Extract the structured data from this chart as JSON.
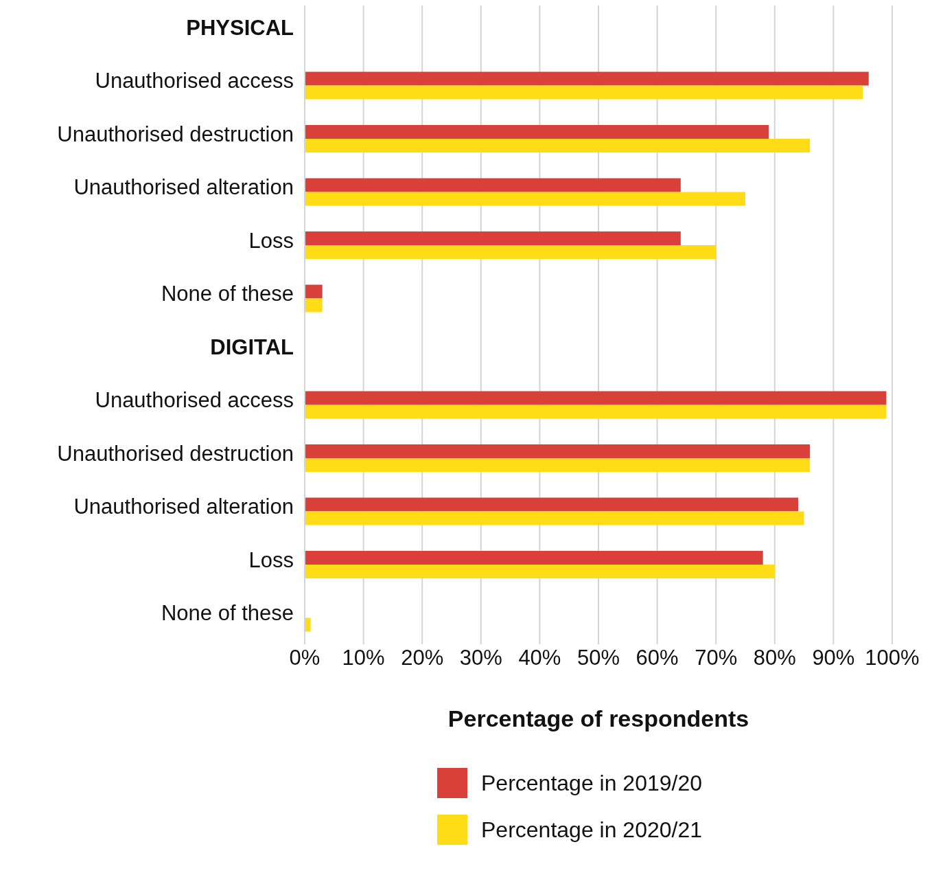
{
  "chart_data": {
    "type": "bar",
    "orientation": "horizontal",
    "xlabel": "Percentage of respondents",
    "categories": [
      "PHYSICAL",
      "Unauthorised access",
      "Unauthorised destruction",
      "Unauthorised alteration",
      "Loss",
      "None of these",
      "DIGITAL",
      "Unauthorised access",
      "Unauthorised destruction",
      "Unauthorised alteration",
      "Loss",
      "None of these"
    ],
    "series": [
      {
        "name": "Percentage in 2019/20",
        "color": "#d9403a",
        "values": [
          null,
          96,
          79,
          64,
          64,
          3,
          null,
          99,
          86,
          84,
          78,
          null
        ]
      },
      {
        "name": "Percentage in 2020/21",
        "color": "#ffdc16",
        "values": [
          null,
          95,
          86,
          75,
          70,
          3,
          null,
          99,
          86,
          85,
          80,
          1
        ]
      }
    ],
    "xlim": [
      0,
      100
    ],
    "xticks": [
      {
        "value": 0,
        "label": "0%"
      },
      {
        "value": 10,
        "label": "10%"
      },
      {
        "value": 20,
        "label": "20%"
      },
      {
        "value": 30,
        "label": "30%"
      },
      {
        "value": 40,
        "label": "40%"
      },
      {
        "value": 50,
        "label": "50%"
      },
      {
        "value": 60,
        "label": "60%"
      },
      {
        "value": 70,
        "label": "70%"
      },
      {
        "value": 80,
        "label": "80%"
      },
      {
        "value": 90,
        "label": "90%"
      },
      {
        "value": 100,
        "label": "100%"
      }
    ],
    "grid": "x",
    "legend": "bottom"
  }
}
